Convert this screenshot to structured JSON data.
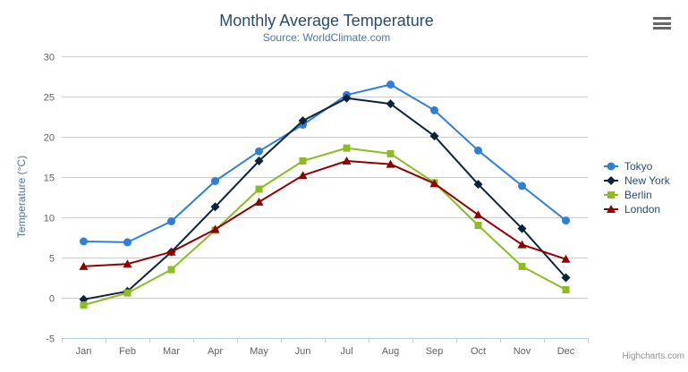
{
  "chart": {
    "credits": "Highcharts.com",
    "context_menu_icon": "hamburger-icon"
  },
  "chart_data": {
    "type": "line",
    "title": "Monthly Average Temperature",
    "subtitle": "Source: WorldClimate.com",
    "categories": [
      "Jan",
      "Feb",
      "Mar",
      "Apr",
      "May",
      "Jun",
      "Jul",
      "Aug",
      "Sep",
      "Oct",
      "Nov",
      "Dec"
    ],
    "series": [
      {
        "name": "Tokyo",
        "color": "#2f7ed8",
        "marker": "circle",
        "values": [
          7.0,
          6.9,
          9.5,
          14.5,
          18.2,
          21.5,
          25.2,
          26.5,
          23.3,
          18.3,
          13.9,
          9.6
        ]
      },
      {
        "name": "New York",
        "color": "#0d233a",
        "marker": "diamond",
        "values": [
          -0.2,
          0.8,
          5.7,
          11.3,
          17.0,
          22.0,
          24.8,
          24.1,
          20.1,
          14.1,
          8.6,
          2.5
        ]
      },
      {
        "name": "Berlin",
        "color": "#8bbc21",
        "marker": "square",
        "values": [
          -0.9,
          0.6,
          3.5,
          8.4,
          13.5,
          17.0,
          18.6,
          17.9,
          14.3,
          9.0,
          3.9,
          1.0
        ]
      },
      {
        "name": "London",
        "color": "#910000",
        "marker": "triangle",
        "values": [
          3.9,
          4.2,
          5.7,
          8.5,
          11.9,
          15.2,
          17.0,
          16.6,
          14.2,
          10.3,
          6.6,
          4.8
        ]
      }
    ],
    "xlabel": "",
    "ylabel": "Temperature (°C)",
    "ylim": [
      -5,
      30
    ],
    "ytick_interval": 5,
    "grid": true,
    "legend_position": "right",
    "legend_items": [
      "Tokyo",
      "New York",
      "Berlin",
      "London"
    ]
  },
  "colors": {
    "title": "#274b6d",
    "subtitle": "#4d759e",
    "axis_label": "#606060",
    "axis_title": "#4d759e",
    "grid_line": "#cccccc",
    "axis_line": "#c0d0e0",
    "legend_text": "#274b6d",
    "credits": "#909090",
    "menu_icon": "#666666",
    "background": "#ffffff"
  }
}
